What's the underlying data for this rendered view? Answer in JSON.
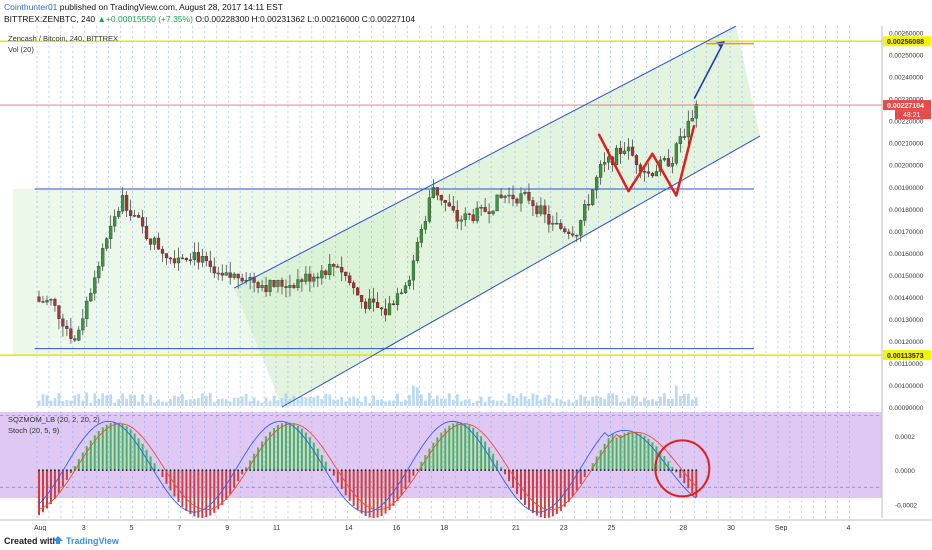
{
  "header": {
    "author": "Cointhunter01",
    "published": " published on TradingView.com, August 28, 2017 14:11 EST",
    "symbol": "BITTREX:ZENBTC, 240",
    "arrow": "▲",
    "change": "+0.00015550 (+7.35%)",
    "ohlc": "O:0.00228300 H:0.00231362 L:0.00216000 C:0.00227104"
  },
  "chart_data": [
    {
      "type": "candlestick",
      "title": "Zencash / Bitcoin, 240, BITTREX",
      "volume_label": "Vol (20)",
      "price_axis": {
        "ticks": [
          "0.00260000",
          "0.00250000",
          "0.00240000",
          "0.00230000",
          "0.00220000",
          "0.00210000",
          "0.00200000",
          "0.00190000",
          "0.00180000",
          "0.00170000",
          "0.00160000",
          "0.00150000",
          "0.00140000",
          "0.00130000",
          "0.00120000",
          "0.00110000",
          "0.00100000",
          "0.00090000"
        ],
        "ylim": [
          0.0009,
          0.00263
        ]
      },
      "price_badges": {
        "upper": "0.00256088",
        "last": "0.00227104",
        "countdown": "48:21",
        "lower": "0.00113573"
      },
      "x_axis_labels": [
        "Aug",
        "3",
        "5",
        "7",
        "9",
        "11",
        "14",
        "16",
        "18",
        "21",
        "23",
        "25",
        "28",
        "30",
        "Sep",
        "4"
      ],
      "candle_interval": "4h",
      "close_anchors": [
        [
          "Aug 1",
          0.00138
        ],
        [
          "Aug 2",
          0.0012
        ],
        [
          "Aug 3",
          0.00155
        ],
        [
          "Aug 4",
          0.00185
        ],
        [
          "Aug 5",
          0.00168
        ],
        [
          "Aug 6",
          0.00158
        ],
        [
          "Aug 7",
          0.0016
        ],
        [
          "Aug 8",
          0.00148
        ],
        [
          "Aug 9",
          0.0015
        ],
        [
          "Aug 10",
          0.00145
        ],
        [
          "Aug 11",
          0.00146
        ],
        [
          "Aug 12",
          0.0015
        ],
        [
          "Aug 13",
          0.00155
        ],
        [
          "Aug 14",
          0.00138
        ],
        [
          "Aug 15",
          0.00133
        ],
        [
          "Aug 16",
          0.0015
        ],
        [
          "Aug 17",
          0.0019
        ],
        [
          "Aug 18",
          0.00175
        ],
        [
          "Aug 19",
          0.00178
        ],
        [
          "Aug 20",
          0.00186
        ],
        [
          "Aug 21",
          0.00185
        ],
        [
          "Aug 22",
          0.00172
        ],
        [
          "Aug 23",
          0.0017
        ],
        [
          "Aug 24",
          0.00198
        ],
        [
          "Aug 25",
          0.00208
        ],
        [
          "Aug 26",
          0.00196
        ],
        [
          "Aug 27",
          0.00203
        ],
        [
          "Aug 28",
          0.00227
        ]
      ],
      "horizontal_levels": [
        0.00256088,
        0.00113573,
        0.00189
      ],
      "channel_lines": [
        {
          "from": [
            "Aug 9 06:00",
            0.00144
          ],
          "to": [
            "Aug 30 06:00",
            0.00263
          ]
        },
        {
          "from": [
            "Aug 11 06:00",
            0.0009
          ],
          "to": [
            "Aug 31 06:00",
            0.00213
          ]
        }
      ],
      "annotations": [
        {
          "type": "W-pattern",
          "points": [
            [
              "Aug 24 12:00",
              0.00214
            ],
            [
              "Aug 25 18:00",
              0.00188
            ],
            [
              "Aug 26 18:00",
              0.00205
            ],
            [
              "Aug 27 18:00",
              0.00186
            ],
            [
              "Aug 28 12:00",
              0.00218
            ]
          ]
        },
        {
          "type": "arrow",
          "from": [
            "Aug 28 12:00",
            0.0023
          ],
          "to": [
            "Aug 29 18:00",
            0.00256
          ]
        },
        {
          "type": "target",
          "price": 0.00255,
          "from": "Aug 29",
          "to": "Aug 31"
        }
      ]
    },
    {
      "type": "histogram",
      "title": "SQZMOM_LB (20, 2, 20, 2)",
      "stoch_label": "Stoch (20, 5, 9)",
      "y_ticks": [
        "0.0002",
        "0.0000",
        "-0.0002"
      ],
      "ylim": [
        -0.00028,
        0.00034
      ],
      "colors": {
        "positive": "#3bbf4a",
        "negative": "#d23c3c",
        "k": "#2962ff",
        "d": "#e8503a"
      }
    }
  ],
  "footer": {
    "created": "Created with",
    "brand": "TradingView"
  }
}
